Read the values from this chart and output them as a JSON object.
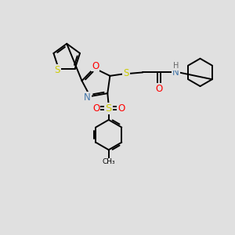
{
  "background_color": "#e0e0e0",
  "figsize": [
    3.0,
    3.0
  ],
  "dpi": 100,
  "atom_colors": {
    "S": "#cccc00",
    "O": "#ff0000",
    "N": "#4477aa",
    "C": "#000000",
    "H": "#666666"
  },
  "bond_color": "#000000",
  "bond_width": 1.4,
  "font_size_atoms": 8.5,
  "font_size_h": 7.0
}
